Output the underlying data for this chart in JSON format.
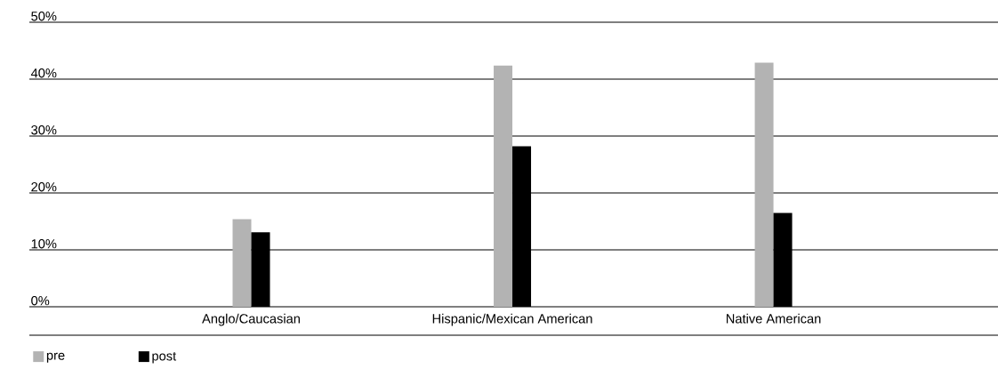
{
  "chart_data": {
    "type": "bar",
    "categories": [
      "Anglo/Caucasian",
      "Hispanic/Mexican American",
      "Native American"
    ],
    "series": [
      {
        "name": "pre",
        "color": "#b3b3b3",
        "values": [
          15.4,
          42.4,
          42.9
        ]
      },
      {
        "name": "post",
        "color": "#000000",
        "values": [
          13.1,
          28.2,
          16.5
        ]
      }
    ],
    "ylim": [
      0,
      50
    ],
    "yticks": [
      {
        "value": 0,
        "label": "0%"
      },
      {
        "value": 10,
        "label": "10%"
      },
      {
        "value": 20,
        "label": "20%"
      },
      {
        "value": 30,
        "label": "30%"
      },
      {
        "value": 40,
        "label": "40%"
      },
      {
        "value": 50,
        "label": "50%"
      }
    ],
    "grid": "y",
    "legend": "bottom left"
  }
}
